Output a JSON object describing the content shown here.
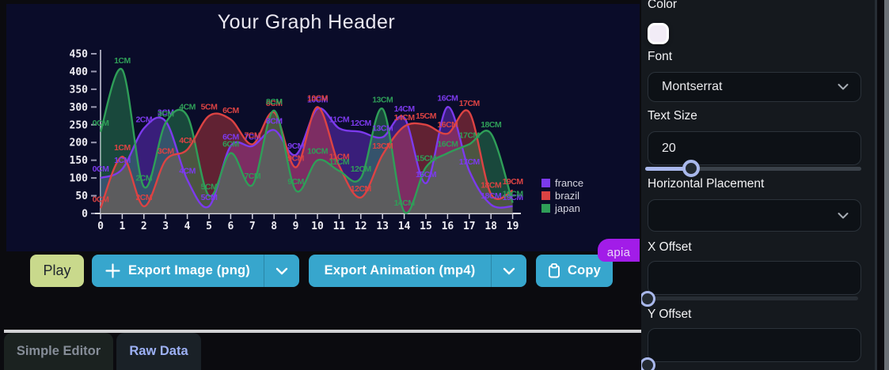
{
  "chart_data": {
    "type": "area",
    "title": "Your Graph Header",
    "x": [
      0,
      1,
      2,
      3,
      4,
      5,
      6,
      7,
      8,
      9,
      10,
      11,
      12,
      13,
      14,
      15,
      16,
      17,
      18,
      19
    ],
    "ylim": [
      0,
      450
    ],
    "yticks": [
      0,
      50,
      100,
      150,
      200,
      250,
      300,
      350,
      400,
      450
    ],
    "point_label_suffix": "CM",
    "legend_position": "right",
    "grid": false,
    "series": [
      {
        "name": "france",
        "color": "#7c3aed",
        "values": [
          100,
          125,
          240,
          260,
          95,
          20,
          190,
          190,
          235,
          165,
          295,
          240,
          230,
          215,
          270,
          85,
          300,
          120,
          25,
          20
        ]
      },
      {
        "name": "brazil",
        "color": "#dc4343",
        "values": [
          15,
          160,
          20,
          150,
          180,
          275,
          265,
          195,
          285,
          130,
          300,
          135,
          45,
          165,
          245,
          250,
          225,
          285,
          55,
          65
        ]
      },
      {
        "name": "japan",
        "color": "#2f9e58",
        "values": [
          230,
          405,
          75,
          255,
          275,
          50,
          170,
          80,
          290,
          65,
          150,
          120,
          100,
          295,
          5,
          130,
          170,
          195,
          225,
          30
        ]
      }
    ]
  },
  "toolbar": {
    "play": "Play",
    "export_image": "Export Image (png)",
    "export_animation": "Export Animation (mp4)",
    "copy": "Copy"
  },
  "badge": "apia",
  "tabs": {
    "simple_editor": "Simple Editor",
    "raw_data": "Raw Data"
  },
  "inspector": {
    "color_label": "Color",
    "font_label": "Font",
    "font_value": "Montserrat",
    "text_size_label": "Text Size",
    "text_size_value": "20",
    "horizontal_placement_label": "Horizontal Placement",
    "horizontal_placement_value": "",
    "x_offset_label": "X Offset",
    "x_offset_value": "",
    "y_offset_label": "Y Offset",
    "y_offset_value": ""
  },
  "colors": {
    "button_cyan": "#37a6cd",
    "play_green": "#c9d98c",
    "badge_purple": "#a21ce8",
    "slider_accent": "#a9b8ec",
    "chart_background": "#0a0c29"
  }
}
